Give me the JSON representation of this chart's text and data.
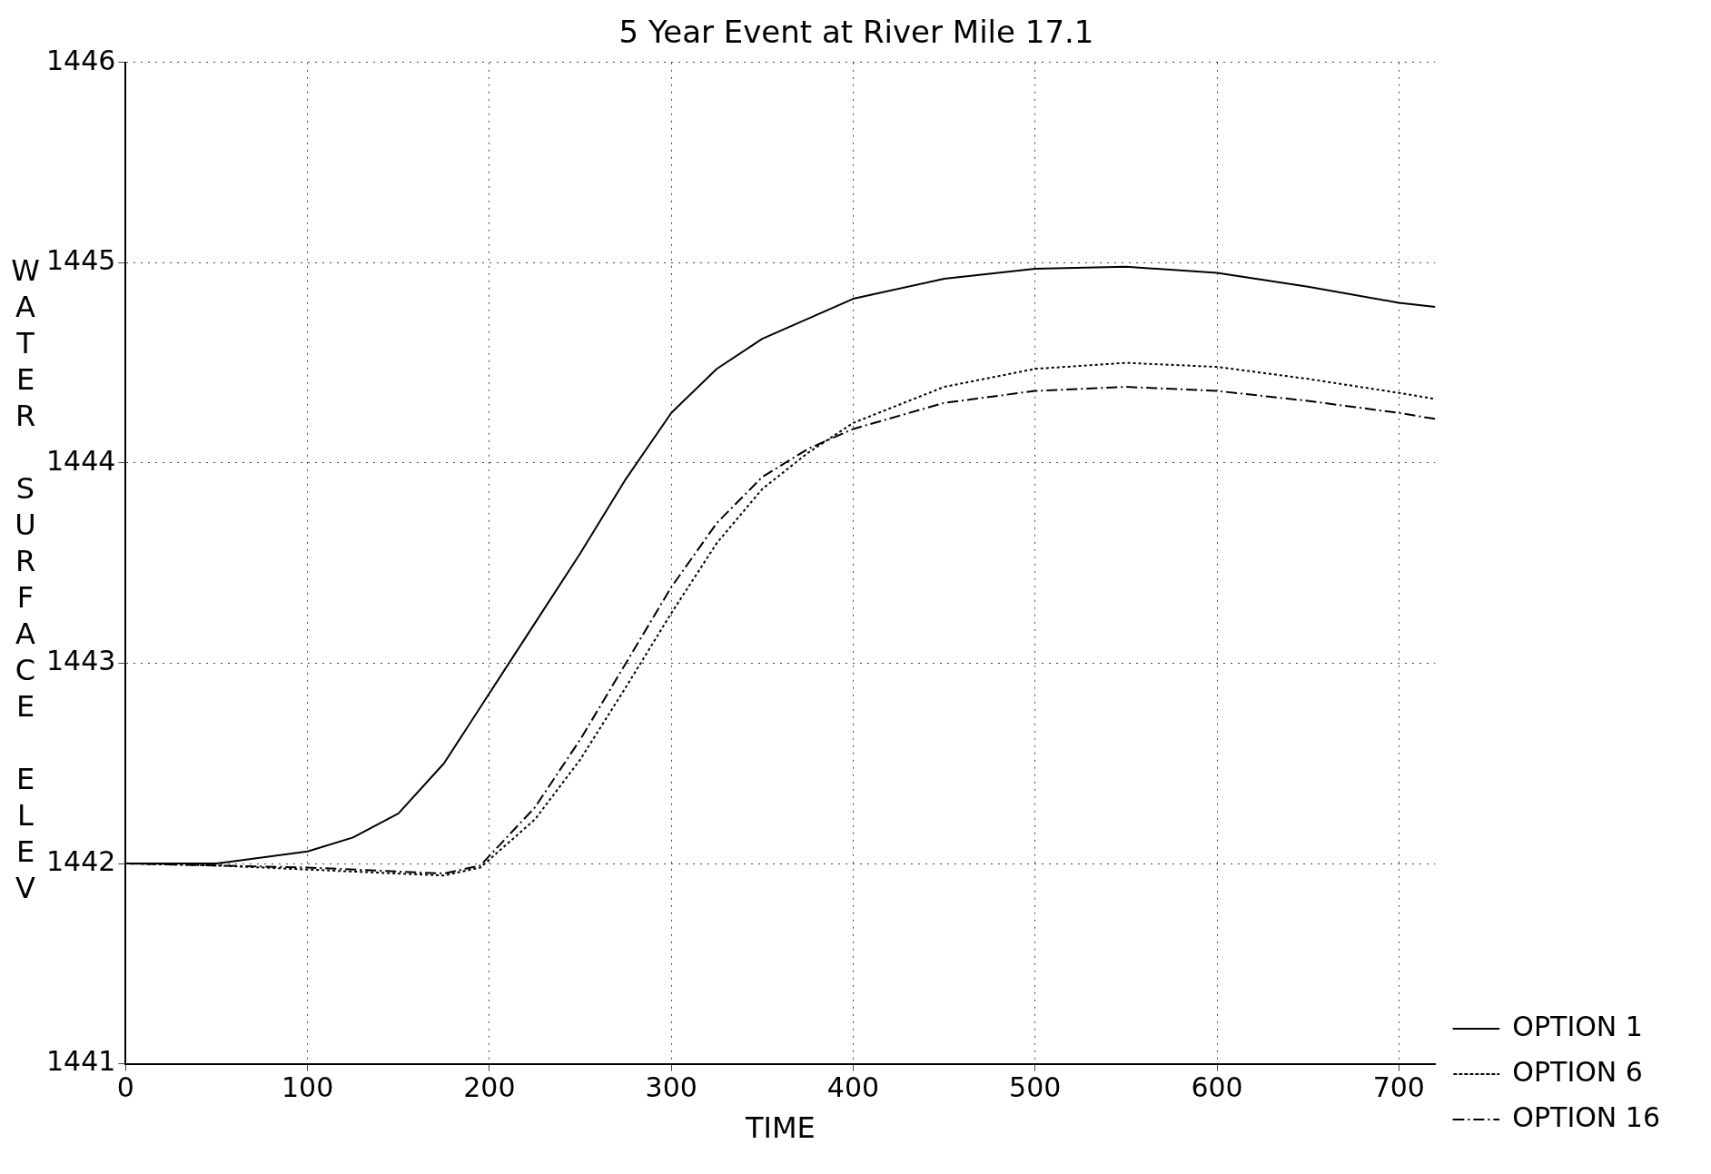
{
  "chart_data": {
    "type": "line",
    "title": "5 Year Event at River Mile 17.1",
    "xlabel": "TIME",
    "ylabel": "WATER SURFACE ELEV",
    "xlim": [
      0,
      720
    ],
    "xticks": [
      0,
      100,
      200,
      300,
      400,
      500,
      600,
      700
    ],
    "ylim": [
      1441,
      1446
    ],
    "yticks": [
      1441,
      1442,
      1443,
      1444,
      1445,
      1446
    ],
    "grid": true,
    "legend": "bottom right",
    "marker": "none",
    "series": [
      {
        "name": "OPTION 1",
        "color": "#000000",
        "line_style": "solid",
        "x": [
          0,
          50,
          100,
          125,
          150,
          175,
          200,
          225,
          250,
          275,
          300,
          325,
          350,
          400,
          450,
          500,
          550,
          600,
          650,
          700,
          720
        ],
        "values": [
          1442.0,
          1442.0,
          1442.06,
          1442.13,
          1442.25,
          1442.5,
          1442.85,
          1443.2,
          1443.55,
          1443.92,
          1444.25,
          1444.47,
          1444.62,
          1444.82,
          1444.92,
          1444.97,
          1444.98,
          1444.95,
          1444.88,
          1444.8,
          1444.78
        ]
      },
      {
        "name": "OPTION 6",
        "color": "#000000",
        "line_style": "dotted",
        "x": [
          0,
          50,
          100,
          150,
          175,
          195,
          225,
          250,
          275,
          300,
          325,
          350,
          375,
          400,
          450,
          500,
          550,
          600,
          650,
          700,
          720
        ],
        "values": [
          1442.0,
          1441.99,
          1441.97,
          1441.95,
          1441.94,
          1441.98,
          1442.22,
          1442.52,
          1442.88,
          1443.25,
          1443.6,
          1443.87,
          1444.05,
          1444.2,
          1444.38,
          1444.47,
          1444.5,
          1444.48,
          1444.42,
          1444.35,
          1444.32
        ]
      },
      {
        "name": "OPTION 16",
        "color": "#000000",
        "line_style": "dashed",
        "x": [
          0,
          50,
          100,
          150,
          175,
          195,
          225,
          250,
          275,
          300,
          325,
          350,
          375,
          400,
          450,
          500,
          550,
          600,
          650,
          700,
          720
        ],
        "values": [
          1442.0,
          1441.99,
          1441.98,
          1441.96,
          1441.95,
          1441.99,
          1442.28,
          1442.62,
          1443.0,
          1443.38,
          1443.7,
          1443.93,
          1444.07,
          1444.17,
          1444.3,
          1444.36,
          1444.38,
          1444.36,
          1444.31,
          1444.25,
          1444.22
        ]
      }
    ]
  }
}
